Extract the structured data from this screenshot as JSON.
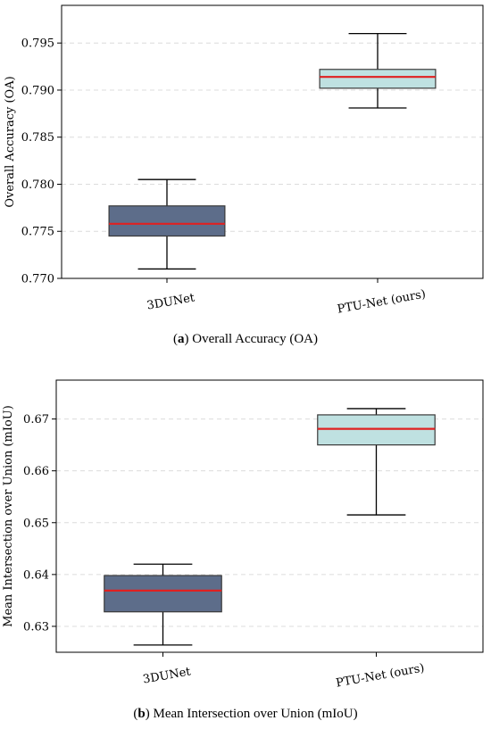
{
  "chart_data": [
    {
      "type": "box",
      "caption_tag": "a",
      "caption_text": "Overall Accuracy (OA)",
      "ylabel": "Overall Accuracy (OA)",
      "ylim": [
        0.77,
        0.799
      ],
      "yticks": [
        0.77,
        0.775,
        0.78,
        0.785,
        0.79,
        0.795
      ],
      "ytick_labels": [
        "0.770",
        "0.775",
        "0.780",
        "0.785",
        "0.790",
        "0.795"
      ],
      "grid": true,
      "categories": [
        "3DUNet",
        "PTU-Net (ours)"
      ],
      "boxes": [
        {
          "whisker_low": 0.771,
          "q1": 0.7745,
          "median": 0.7758,
          "q3": 0.7777,
          "whisker_high": 0.7805,
          "color": "#5d6d8a"
        },
        {
          "whisker_low": 0.7881,
          "q1": 0.7902,
          "median": 0.7914,
          "q3": 0.7922,
          "whisker_high": 0.796,
          "color": "#bfe1e1"
        }
      ],
      "median_color": "#e02020"
    },
    {
      "type": "box",
      "caption_tag": "b",
      "caption_text": "Mean Intersection over Union (mIoU)",
      "ylabel": "Mean Intersection over Union (mIoU)",
      "ylim": [
        0.625,
        0.6775
      ],
      "yticks": [
        0.63,
        0.64,
        0.65,
        0.66,
        0.67
      ],
      "ytick_labels": [
        "0.63",
        "0.64",
        "0.65",
        "0.66",
        "0.67"
      ],
      "grid": true,
      "categories": [
        "3DUNet",
        "PTU-Net (ours)"
      ],
      "boxes": [
        {
          "whisker_low": 0.6264,
          "q1": 0.6328,
          "median": 0.6369,
          "q3": 0.6398,
          "whisker_high": 0.642,
          "color": "#5d6d8a"
        },
        {
          "whisker_low": 0.6515,
          "q1": 0.665,
          "median": 0.6681,
          "q3": 0.6708,
          "whisker_high": 0.672,
          "color": "#bfe1e1"
        }
      ],
      "median_color": "#e02020"
    }
  ]
}
